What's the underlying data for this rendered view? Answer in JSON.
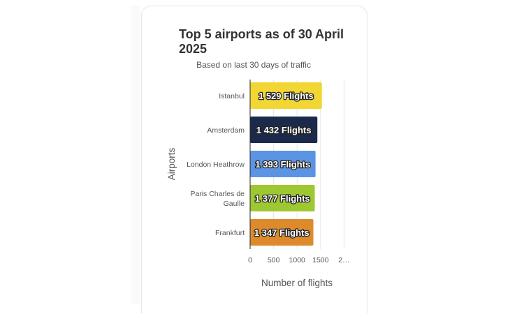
{
  "chart_data": {
    "type": "bar",
    "orientation": "horizontal",
    "title": "Top 5 airports as of 30 April 2025",
    "subtitle": "Based on last 30 days of traffic",
    "xlabel": "Number of flights",
    "ylabel": "Airports",
    "categories": [
      "Istanbul",
      "Amsterdam",
      "London Heathrow",
      "Paris Charles de Gaulle",
      "Frankfurt"
    ],
    "values": [
      1529,
      1432,
      1393,
      1377,
      1347
    ],
    "data_labels": [
      "1 529 Flights",
      "1 432 Flights",
      "1 393 Flights",
      "1 377 Flights",
      "1 347 Flights"
    ],
    "colors": [
      "#f2d633",
      "#1b2a4a",
      "#5b94e3",
      "#9ec832",
      "#dd8a2c"
    ],
    "xlim": [
      0,
      2000
    ],
    "xticks": [
      "0",
      "500",
      "1000",
      "1500",
      "2…"
    ],
    "xtick_values": [
      0,
      500,
      1000,
      1500,
      2000
    ],
    "grid": true
  }
}
